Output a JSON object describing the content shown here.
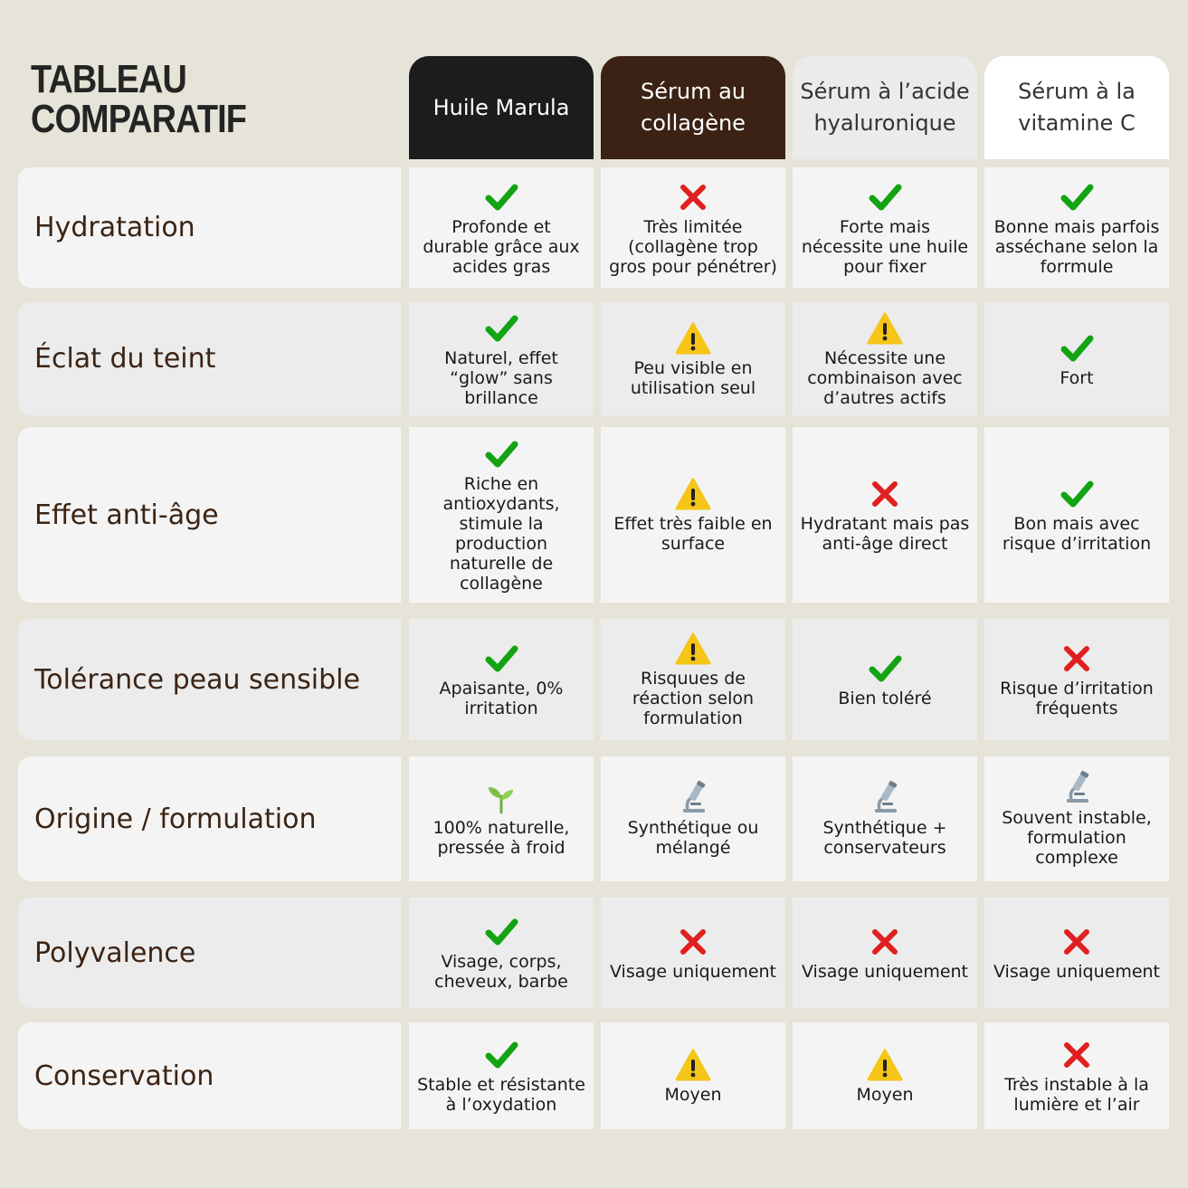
{
  "title": {
    "line1": "TABLEAU",
    "line2": "COMPARATIF"
  },
  "colors": {
    "check": "#13a313",
    "cross": "#e02020",
    "warning": "#f5c518",
    "label_text": "#3c2414"
  },
  "columns": [
    "Huile Marula",
    "Sérum au collagène",
    "Sérum à l’acide hyaluronique",
    "Sérum à la vitamine C"
  ],
  "rows": [
    {
      "label": "Hydratation",
      "cells": [
        {
          "icon": "check-icon",
          "text": "Profonde et durable grâce aux acides gras"
        },
        {
          "icon": "cross-icon",
          "text": "Très limitée (collagène trop gros pour pénétrer)"
        },
        {
          "icon": "check-icon",
          "text": "Forte mais nécessite une huile pour fixer"
        },
        {
          "icon": "check-icon",
          "text": "Bonne mais parfois asséchane selon la forrmule"
        }
      ]
    },
    {
      "label": "Éclat du teint",
      "cells": [
        {
          "icon": "check-icon",
          "text": "Naturel, effet “glow” sans brillance"
        },
        {
          "icon": "warning-icon",
          "text": "Peu visible en utilisation seul"
        },
        {
          "icon": "warning-icon",
          "text": "Nécessite une combinaison avec d’autres actifs"
        },
        {
          "icon": "check-icon",
          "text": "Fort"
        }
      ]
    },
    {
      "label": "Effet anti-âge",
      "cells": [
        {
          "icon": "check-icon",
          "text": "Riche en antioxydants, stimule la production naturelle de collagène"
        },
        {
          "icon": "warning-icon",
          "text": "Effet très faible en surface"
        },
        {
          "icon": "cross-icon",
          "text": "Hydratant mais pas anti-âge direct"
        },
        {
          "icon": "check-icon",
          "text": "Bon mais avec risque d’irritation"
        }
      ]
    },
    {
      "label": "Tolérance peau sensible",
      "cells": [
        {
          "icon": "check-icon",
          "text": "Apaisante, 0% irritation"
        },
        {
          "icon": "warning-icon",
          "text": "Risquues de réaction selon formulation"
        },
        {
          "icon": "check-icon",
          "text": "Bien toléré"
        },
        {
          "icon": "cross-icon",
          "text": "Risque d’irritation fréquents"
        }
      ]
    },
    {
      "label": "Origine / formulation",
      "cells": [
        {
          "icon": "seedling-icon",
          "text": "100% naturelle, pressée à froid"
        },
        {
          "icon": "microscope-icon",
          "text": "Synthétique ou mélangé"
        },
        {
          "icon": "microscope-icon",
          "text": "Synthétique + conservateurs"
        },
        {
          "icon": "microscope-icon",
          "text": "Souvent instable, formulation complexe"
        }
      ]
    },
    {
      "label": "Polyvalence",
      "cells": [
        {
          "icon": "check-icon",
          "text": "Visage, corps, cheveux, barbe"
        },
        {
          "icon": "cross-icon",
          "text": "Visage uniquement"
        },
        {
          "icon": "cross-icon",
          "text": "Visage uniquement"
        },
        {
          "icon": "cross-icon",
          "text": "Visage uniquement"
        }
      ]
    },
    {
      "label": "Conservation",
      "cells": [
        {
          "icon": "check-icon",
          "text": "Stable et résistante à l’oxydation"
        },
        {
          "icon": "warning-icon",
          "text": "Moyen"
        },
        {
          "icon": "warning-icon",
          "text": "Moyen"
        },
        {
          "icon": "cross-icon",
          "text": "Très instable à la lumière et l’air"
        }
      ]
    }
  ]
}
